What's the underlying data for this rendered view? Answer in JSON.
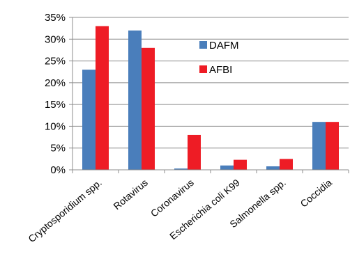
{
  "chart_data": {
    "type": "bar",
    "title": "",
    "xlabel": "",
    "ylabel": "",
    "categories": [
      "Cryptosporidium spp.",
      "Rotavirus",
      "Coronavirus",
      "Escherichia coli K99",
      "Salmonella spp.",
      "Coccidia"
    ],
    "series": [
      {
        "name": "DAFM",
        "color": "#4a7ebb",
        "values": [
          23,
          32,
          0.3,
          1.0,
          0.8,
          11
        ]
      },
      {
        "name": "AFBI",
        "color": "#ee1c25",
        "values": [
          33,
          28,
          8,
          2.3,
          2.5,
          11
        ]
      }
    ],
    "ylim": [
      0,
      35
    ],
    "yticks": [
      "0%",
      "5%",
      "10%",
      "15%",
      "20%",
      "25%",
      "30%",
      "35%"
    ],
    "grid": true,
    "legend": "upper-right inside plot"
  }
}
